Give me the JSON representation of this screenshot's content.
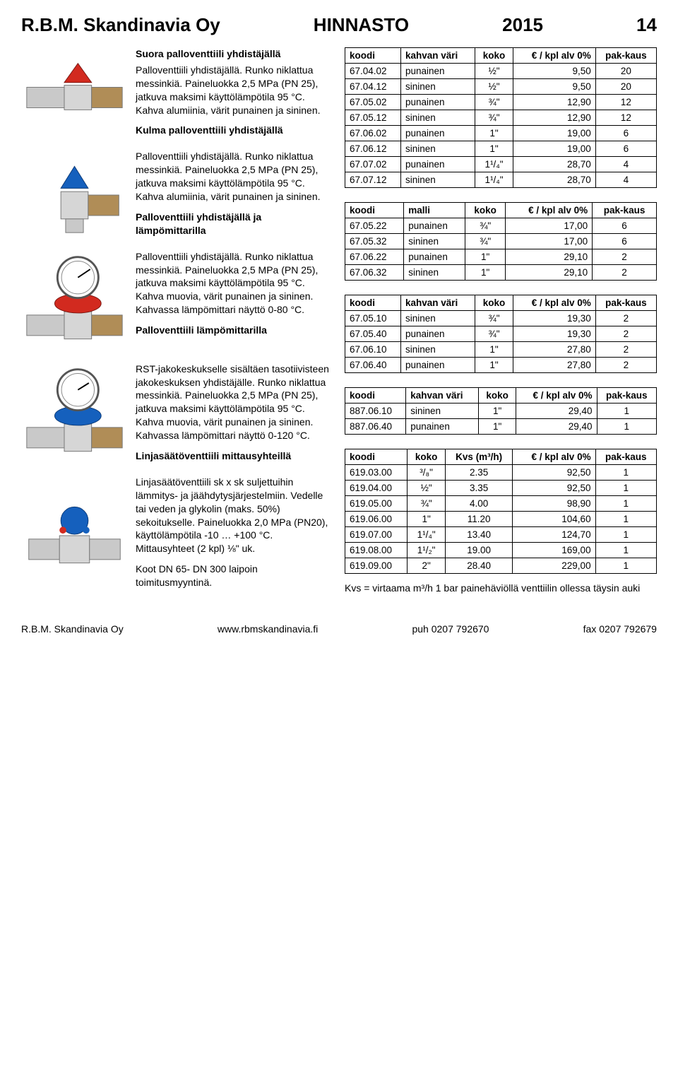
{
  "header": {
    "company": "R.B.M. Skandinavia Oy",
    "title": "HINNASTO",
    "year": "2015",
    "page": "14"
  },
  "sections": [
    {
      "title": "Suora palloventtiili yhdistäjällä",
      "body": "Palloventtiili yhdistäjällä. Runko niklattua messinkiä. Paineluokka 2,5 MPa (PN 25), jatkuva maksimi käyttölämpötila 95 °C. Kahva alumiinia, värit punainen ja sininen."
    },
    {
      "title": "Kulma palloventtiili yhdistäjällä",
      "body": "Palloventtiili yhdistäjällä. Runko niklattua messinkiä. Paineluokka 2,5 MPa (PN 25), jatkuva maksimi käyttölämpötila 95 °C. Kahva alumiinia, värit punainen ja sininen."
    },
    {
      "title": "Palloventtiili yhdistäjällä ja lämpömittarilla",
      "body": "Palloventtiili yhdistäjällä. Runko niklattua messinkiä. Paineluokka 2,5 MPa (PN 25), jatkuva maksimi käyttölämpötila 95 °C. Kahva muovia, värit punainen ja sininen. Kahvassa lämpömittari näyttö 0-80 °C."
    },
    {
      "title": "Palloventtiili lämpömittarilla",
      "body": "RST-jakokeskukselle sisältäen tasotiivisteen jakokeskuksen yhdistäjälle. Runko niklattua messinkiä. Paineluokka 2,5 MPa (PN 25), jatkuva maksimi käyttölämpötila 95 °C. Kahva muovia, värit punainen ja sininen. Kahvassa lämpömittari näyttö 0-120 °C."
    },
    {
      "title": "Linjasäätöventtiili mittausyhteillä",
      "body": "Linjasäätöventtiili sk x sk suljettuihin lämmitys- ja jäähdytysjärjestelmiin. Vedelle tai veden ja glykolin (maks. 50%) sekoitukselle. Paineluokka 2,0 MPa (PN20), käyttölämpötila -10 … +100 °C. Mittausyhteet (2 kpl) ⅛\" uk.",
      "extra": "Koot DN 65- DN 300 laipoin toimitusmyyntinä."
    }
  ],
  "tables": {
    "t1": {
      "cols": [
        "koodi",
        "kahvan väri",
        "koko",
        "€ / kpl alv 0%",
        "pak-kaus"
      ],
      "rows": [
        [
          "67.04.02",
          "punainen",
          "½\"",
          "9,50",
          "20"
        ],
        [
          "67.04.12",
          "sininen",
          "½\"",
          "9,50",
          "20"
        ],
        [
          "67.05.02",
          "punainen",
          "¾\"",
          "12,90",
          "12"
        ],
        [
          "67.05.12",
          "sininen",
          "¾\"",
          "12,90",
          "12"
        ],
        [
          "67.06.02",
          "punainen",
          "1\"",
          "19,00",
          "6"
        ],
        [
          "67.06.12",
          "sininen",
          "1\"",
          "19,00",
          "6"
        ],
        [
          "67.07.02",
          "punainen",
          "1¹/₄\"",
          "28,70",
          "4"
        ],
        [
          "67.07.12",
          "sininen",
          "1¹/₄\"",
          "28,70",
          "4"
        ]
      ]
    },
    "t2": {
      "cols": [
        "koodi",
        "malli",
        "koko",
        "€ / kpl alv 0%",
        "pak-kaus"
      ],
      "rows": [
        [
          "67.05.22",
          "punainen",
          "¾\"",
          "17,00",
          "6"
        ],
        [
          "67.05.32",
          "sininen",
          "¾\"",
          "17,00",
          "6"
        ],
        [
          "67.06.22",
          "punainen",
          "1\"",
          "29,10",
          "2"
        ],
        [
          "67.06.32",
          "sininen",
          "1\"",
          "29,10",
          "2"
        ]
      ]
    },
    "t3": {
      "cols": [
        "koodi",
        "kahvan väri",
        "koko",
        "€ / kpl alv 0%",
        "pak-kaus"
      ],
      "rows": [
        [
          "67.05.10",
          "sininen",
          "¾\"",
          "19,30",
          "2"
        ],
        [
          "67.05.40",
          "punainen",
          "¾\"",
          "19,30",
          "2"
        ],
        [
          "67.06.10",
          "sininen",
          "1\"",
          "27,80",
          "2"
        ],
        [
          "67.06.40",
          "punainen",
          "1\"",
          "27,80",
          "2"
        ]
      ]
    },
    "t4": {
      "cols": [
        "koodi",
        "kahvan väri",
        "koko",
        "€ / kpl alv 0%",
        "pak-kaus"
      ],
      "rows": [
        [
          "887.06.10",
          "sininen",
          "1\"",
          "29,40",
          "1"
        ],
        [
          "887.06.40",
          "punainen",
          "1\"",
          "29,40",
          "1"
        ]
      ]
    },
    "t5": {
      "cols": [
        "koodi",
        "koko",
        "Kvs (m³/h)",
        "€ / kpl alv 0%",
        "pak-kaus"
      ],
      "rows": [
        [
          "619.03.00",
          "³/₈\"",
          "2.35",
          "92,50",
          "1"
        ],
        [
          "619.04.00",
          "½\"",
          "3.35",
          "92,50",
          "1"
        ],
        [
          "619.05.00",
          "¾\"",
          "4.00",
          "98,90",
          "1"
        ],
        [
          "619.06.00",
          "1\"",
          "11.20",
          "104,60",
          "1"
        ],
        [
          "619.07.00",
          "1¹/₄\"",
          "13.40",
          "124,70",
          "1"
        ],
        [
          "619.08.00",
          "1¹/₂\"",
          "19.00",
          "169,00",
          "1"
        ],
        [
          "619.09.00",
          "2\"",
          "28.40",
          "229,00",
          "1"
        ]
      ]
    }
  },
  "kvs_note": "Kvs = virtaama m³/h 1 bar painehäviöllä venttiilin ollessa täysin auki",
  "footer": {
    "company": "R.B.M. Skandinavia Oy",
    "web": "www.rbmskandinavia.fi",
    "phone": "puh 0207 792670",
    "fax": "fax 0207 792679"
  },
  "style": {
    "page_bg": "#ffffff",
    "text_color": "#000000",
    "border_color": "#000000",
    "font_family": "Arial",
    "header_fontsize_pt": 20,
    "body_fontsize_pt": 11,
    "table_fontsize_pt": 10,
    "product_colors": {
      "red": "#d22a1f",
      "blue": "#1560bd",
      "metal": "#c9c9c9",
      "brass": "#b08d57",
      "gauge_face": "#ffffff"
    }
  }
}
